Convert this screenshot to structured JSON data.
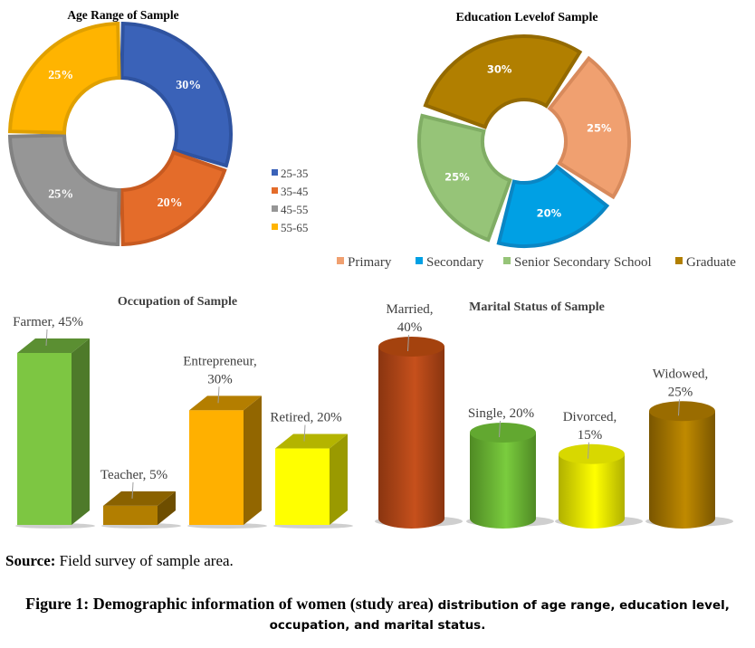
{
  "chart_data": [
    {
      "type": "pie",
      "variant": "donut",
      "title": "Age Range of Sample",
      "categories": [
        "25-35",
        "35-45",
        "45-55",
        "55-65"
      ],
      "values": [
        30,
        20,
        25,
        25
      ],
      "labels": [
        "30%",
        "20%",
        "25%",
        "25%"
      ],
      "colors": [
        "#3a62b8",
        "#e46c2a",
        "#969696",
        "#ffb400"
      ],
      "border_colors": [
        "#2f53a0",
        "#c85a20",
        "#828282",
        "#e0a000"
      ],
      "start_angle_deg": 0,
      "legend_position": "right"
    },
    {
      "type": "pie",
      "variant": "donut",
      "title": "Education Levelof Sample",
      "categories": [
        "Primary",
        "Secondary",
        "Senior Secondary School",
        "Graduate"
      ],
      "values": [
        25,
        20,
        25,
        30
      ],
      "labels": [
        "25%",
        "20%",
        "25%",
        "30%"
      ],
      "colors": [
        "#f0a070",
        "#00a0e4",
        "#96c478",
        "#b17f00"
      ],
      "border_colors": [
        "#d88a5c",
        "#0a86c4",
        "#80ad64",
        "#946a00"
      ],
      "start_angle_deg": 35,
      "legend_position": "bottom"
    },
    {
      "type": "bar",
      "variant": "3d-column",
      "title": "Occupation of Sample",
      "categories": [
        "Farmer",
        "Teacher",
        "Entrepreneur",
        "Retired"
      ],
      "values": [
        45,
        5,
        30,
        20
      ],
      "label_lines": [
        [
          "Farmer, 45%"
        ],
        [
          "Teacher, 5%"
        ],
        [
          "Entrepreneur,",
          "30%"
        ],
        [
          "Retired, 20%"
        ]
      ],
      "colors": [
        "#7dc642",
        "#b27e00",
        "#ffb000",
        "#ffff00"
      ],
      "top_colors": [
        "#5b8f32",
        "#8a6200",
        "#b47e00",
        "#b4b400"
      ],
      "side_colors": [
        "#4e7a2a",
        "#6e4e00",
        "#926600",
        "#9a9a00"
      ],
      "ylim": [
        0,
        45
      ]
    },
    {
      "type": "bar",
      "variant": "3d-cylinder",
      "title": "Marital Status of Sample",
      "categories": [
        "Married",
        "Single",
        "Divorced",
        "Widowed"
      ],
      "values": [
        40,
        20,
        15,
        25
      ],
      "label_lines": [
        [
          "Married,",
          "40%"
        ],
        [
          "Single, 20%"
        ],
        [
          "Divorced,",
          "15%"
        ],
        [
          "Widowed,",
          "25%"
        ]
      ],
      "colors": [
        "#c6501c",
        "#7acc3e",
        "#ffff00",
        "#c08a00"
      ],
      "dark_colors": [
        "#8a3510",
        "#4f8a24",
        "#b0b000",
        "#7a5600"
      ],
      "top_colors": [
        "#a4420e",
        "#62a830",
        "#d8d800",
        "#9a6c00"
      ],
      "ylim": [
        0,
        40
      ]
    }
  ],
  "source": {
    "label": "Source:",
    "text": " Field survey of sample area."
  },
  "caption": {
    "part1": "Figure 1: Demographic information of women (study area)",
    "part2": " distribution of age range, education level, occupation, and marital status."
  }
}
